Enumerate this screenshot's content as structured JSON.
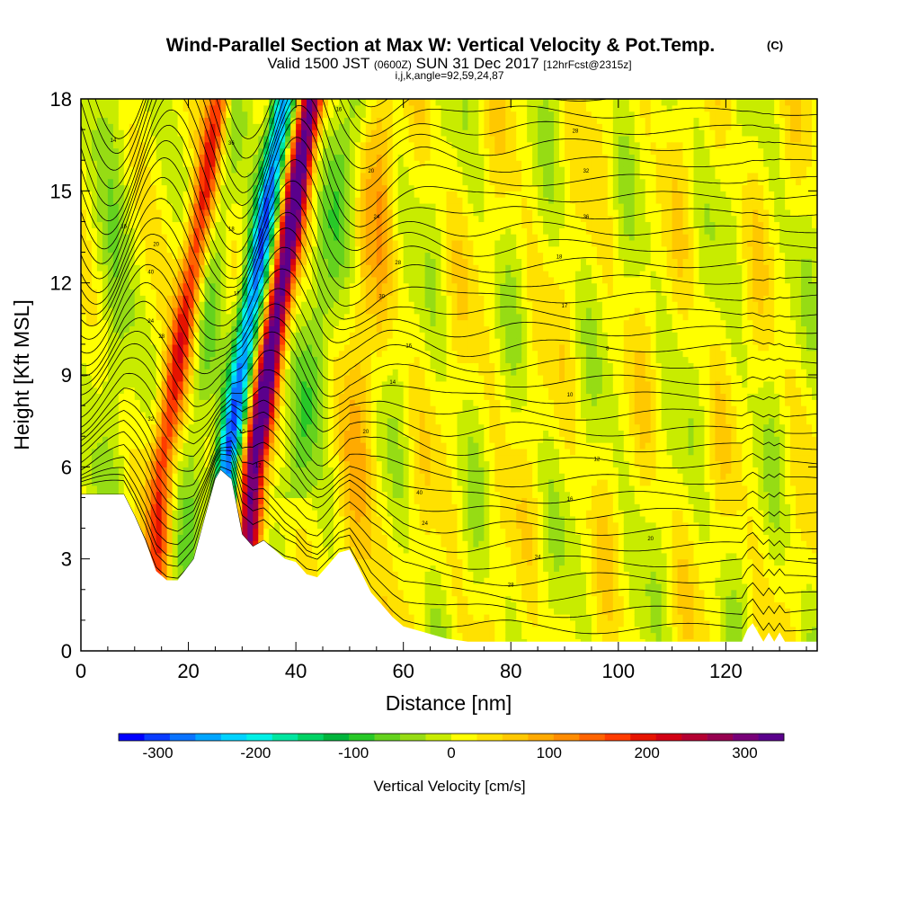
{
  "title": "Wind-Parallel Section at Max W: Vertical Velocity & Pot.Temp.",
  "title_mark": "(C)",
  "subtitle": {
    "valid_a": "Valid 1500 JST",
    "valid_zone": "(0600Z)",
    "valid_b": "SUN 31 Dec 2017",
    "forecast": "[12hrFcst@2315z]"
  },
  "index_line": "i,j,k,angle=92,59,24,87",
  "chart_data": {
    "type": "heatmap",
    "description_free": true,
    "xlabel": "Distance [nm]",
    "ylabel": "Height [Kft MSL]",
    "xlim": [
      0,
      137
    ],
    "ylim": [
      0,
      18
    ],
    "x_ticks": [
      0,
      20,
      40,
      60,
      80,
      100,
      120
    ],
    "y_ticks": [
      0,
      3,
      6,
      9,
      12,
      15,
      18
    ],
    "colorbar": {
      "label": "Vertical Velocity [cm/s]",
      "ticks": [
        -300,
        -200,
        -100,
        0,
        100,
        200,
        300
      ],
      "range": [
        -340,
        340
      ],
      "colors": [
        "#0000ff",
        "#0a3cff",
        "#0a73ff",
        "#00a5ff",
        "#00d2ff",
        "#00f0e6",
        "#00e6a0",
        "#00d264",
        "#00b43c",
        "#28c828",
        "#64d21e",
        "#96dc14",
        "#c8ec00",
        "#ffff00",
        "#ffe100",
        "#ffc800",
        "#ffaa00",
        "#ff8c00",
        "#ff6400",
        "#ff3c00",
        "#e61400",
        "#d20014",
        "#b40032",
        "#960050",
        "#780078",
        "#5a008c"
      ]
    },
    "updraft_features": [
      {
        "x_center": 15,
        "peak_cm_s": 180,
        "sign": "up"
      },
      {
        "x_center": 27,
        "peak_cm_s": -290,
        "sign": "down"
      },
      {
        "x_center": 32,
        "peak_cm_s": 340,
        "sign": "up"
      },
      {
        "x_center": 51,
        "peak_cm_s": 60,
        "sign": "up"
      }
    ],
    "terrain_kft": [
      [
        0,
        5.1
      ],
      [
        4,
        5.1
      ],
      [
        8,
        5.1
      ],
      [
        10,
        4.4
      ],
      [
        12,
        3.6
      ],
      [
        14,
        2.6
      ],
      [
        16,
        2.3
      ],
      [
        18,
        2.3
      ],
      [
        21,
        3.0
      ],
      [
        23,
        4.3
      ],
      [
        25,
        5.6
      ],
      [
        26,
        5.9
      ],
      [
        28,
        5.6
      ],
      [
        30,
        3.8
      ],
      [
        32,
        3.4
      ],
      [
        34,
        3.6
      ],
      [
        36,
        3.3
      ],
      [
        38,
        3.0
      ],
      [
        40,
        2.9
      ],
      [
        42,
        2.5
      ],
      [
        44,
        2.4
      ],
      [
        46,
        2.8
      ],
      [
        48,
        3.2
      ],
      [
        50,
        3.3
      ],
      [
        52,
        2.6
      ],
      [
        54,
        1.9
      ],
      [
        56,
        1.5
      ],
      [
        58,
        1.1
      ],
      [
        60,
        0.8
      ],
      [
        64,
        0.6
      ],
      [
        68,
        0.4
      ],
      [
        72,
        0.3
      ],
      [
        80,
        0.3
      ],
      [
        100,
        0.3
      ],
      [
        120,
        0.3
      ],
      [
        123,
        0.3
      ],
      [
        124,
        0.7
      ],
      [
        125,
        0.9
      ],
      [
        126,
        0.6
      ],
      [
        127,
        0.3
      ],
      [
        128,
        0.6
      ],
      [
        129,
        0.3
      ],
      [
        130,
        0.6
      ],
      [
        131,
        0.3
      ],
      [
        137,
        0.3
      ]
    ],
    "contour_labels": [
      "16",
      "14",
      "20",
      "40",
      "24",
      "28",
      "32",
      "36",
      "18",
      "17",
      "8",
      "10",
      "12",
      "16",
      "20",
      "24",
      "28",
      "30"
    ],
    "grid": false
  }
}
